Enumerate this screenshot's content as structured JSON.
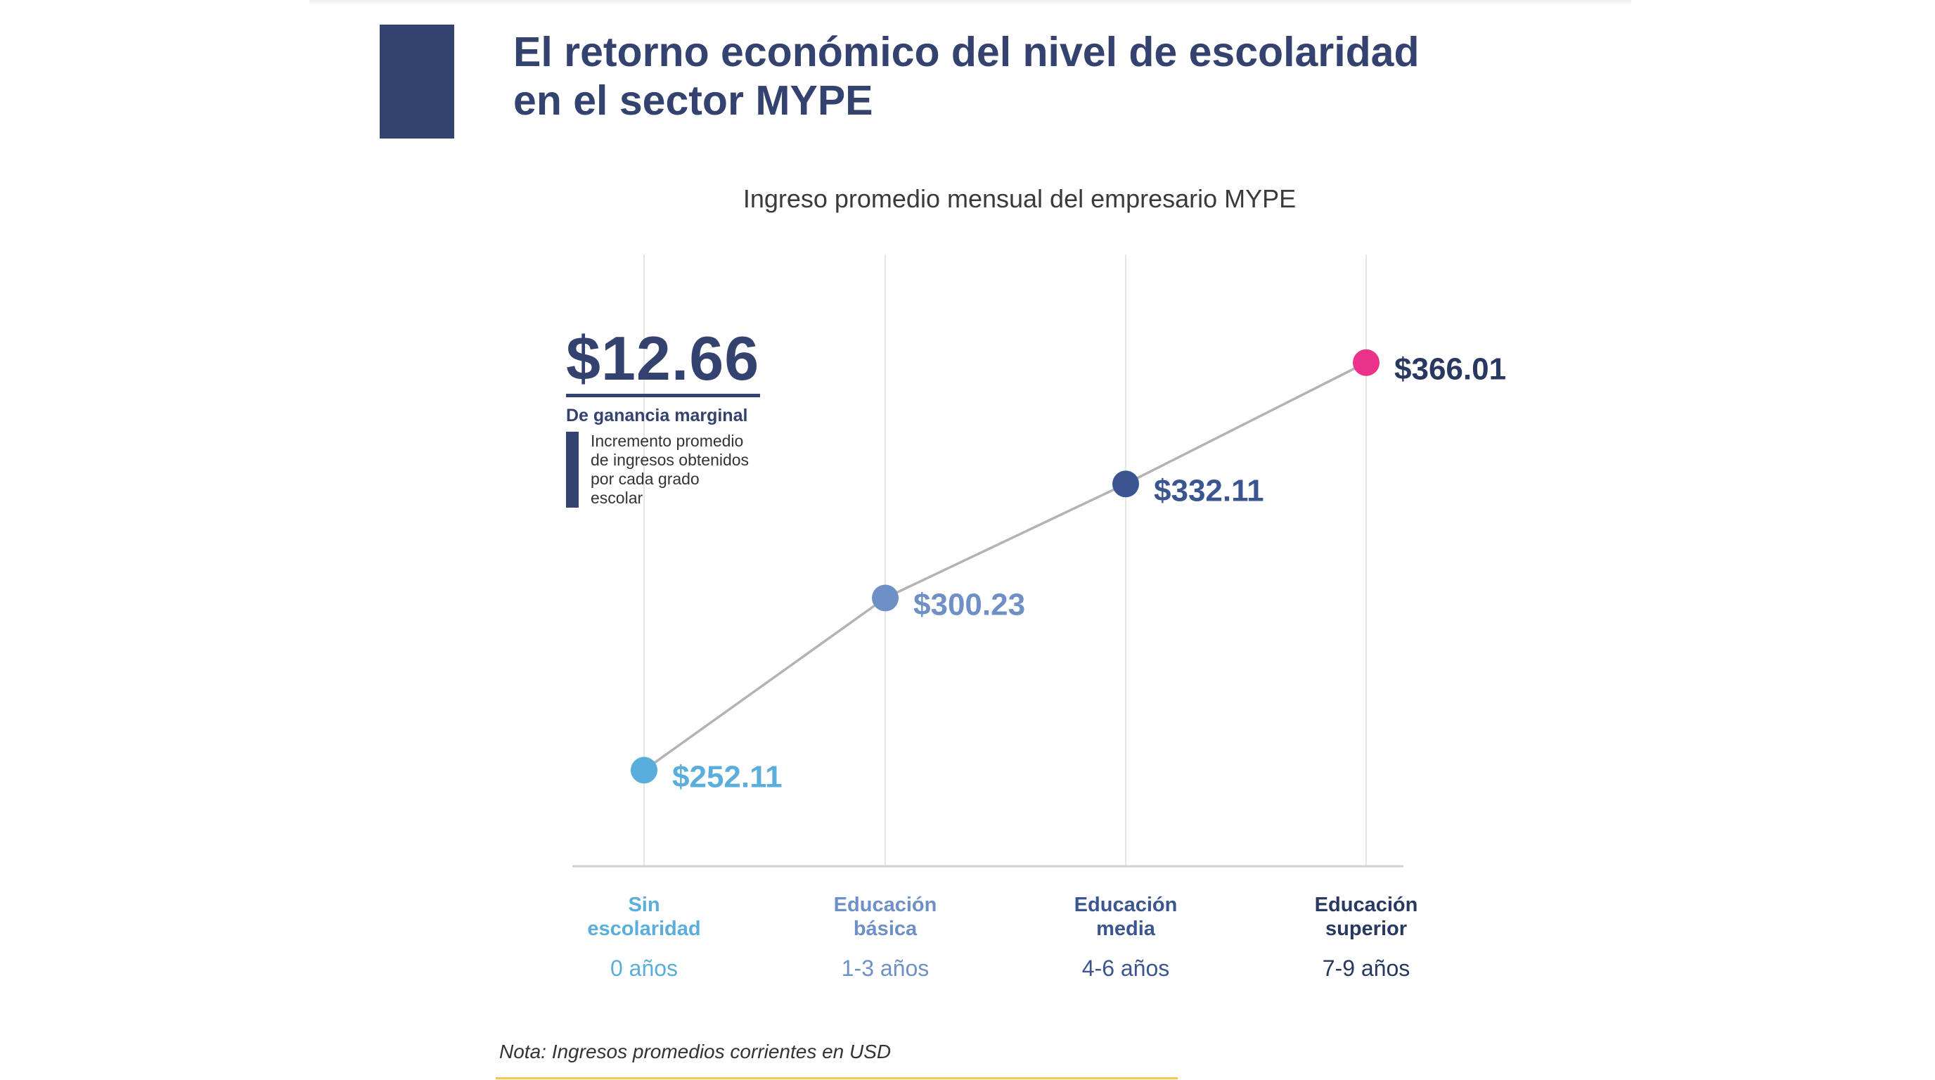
{
  "title": "El retorno económico del nivel de escolaridad en el sector MYPE",
  "callout": {
    "value": "$12.66",
    "heading": "De ganancia marginal",
    "description": "Incremento promedio de ingresos obtenidos por cada grado escolar"
  },
  "note": "Nota: Ingresos promedios corrientes en USD",
  "colors": {
    "navy": "#33426e",
    "level_1": "#5aaedb",
    "level_2": "#6f90c6",
    "level_3": "#3b5590",
    "level_4": "#283860",
    "highlight_point": "#ea3388",
    "line": "#b3b3b3",
    "note_line": "#f3c84a"
  },
  "chart_data": {
    "type": "line",
    "title": "Ingreso promedio mensual del empresario MYPE",
    "categories": [
      "Sin escolaridad",
      "Educación básica",
      "Educación media",
      "Educación superior"
    ],
    "sublabels": [
      "0 años",
      "1-3 años",
      "4-6 años",
      "7-9 años"
    ],
    "values": [
      252.11,
      300.23,
      332.11,
      366.01
    ],
    "value_labels": [
      "$252.11",
      "$300.23",
      "$332.11",
      "$366.01"
    ],
    "point_colors": [
      "#5aaedb",
      "#6f90c6",
      "#3b5590",
      "#ea3388"
    ],
    "label_colors": [
      "#5aaedb",
      "#6f90c6",
      "#3b5590",
      "#283860"
    ],
    "ylim": [
      240,
      375
    ],
    "grid": "vertical",
    "xlabel": "",
    "ylabel": ""
  }
}
